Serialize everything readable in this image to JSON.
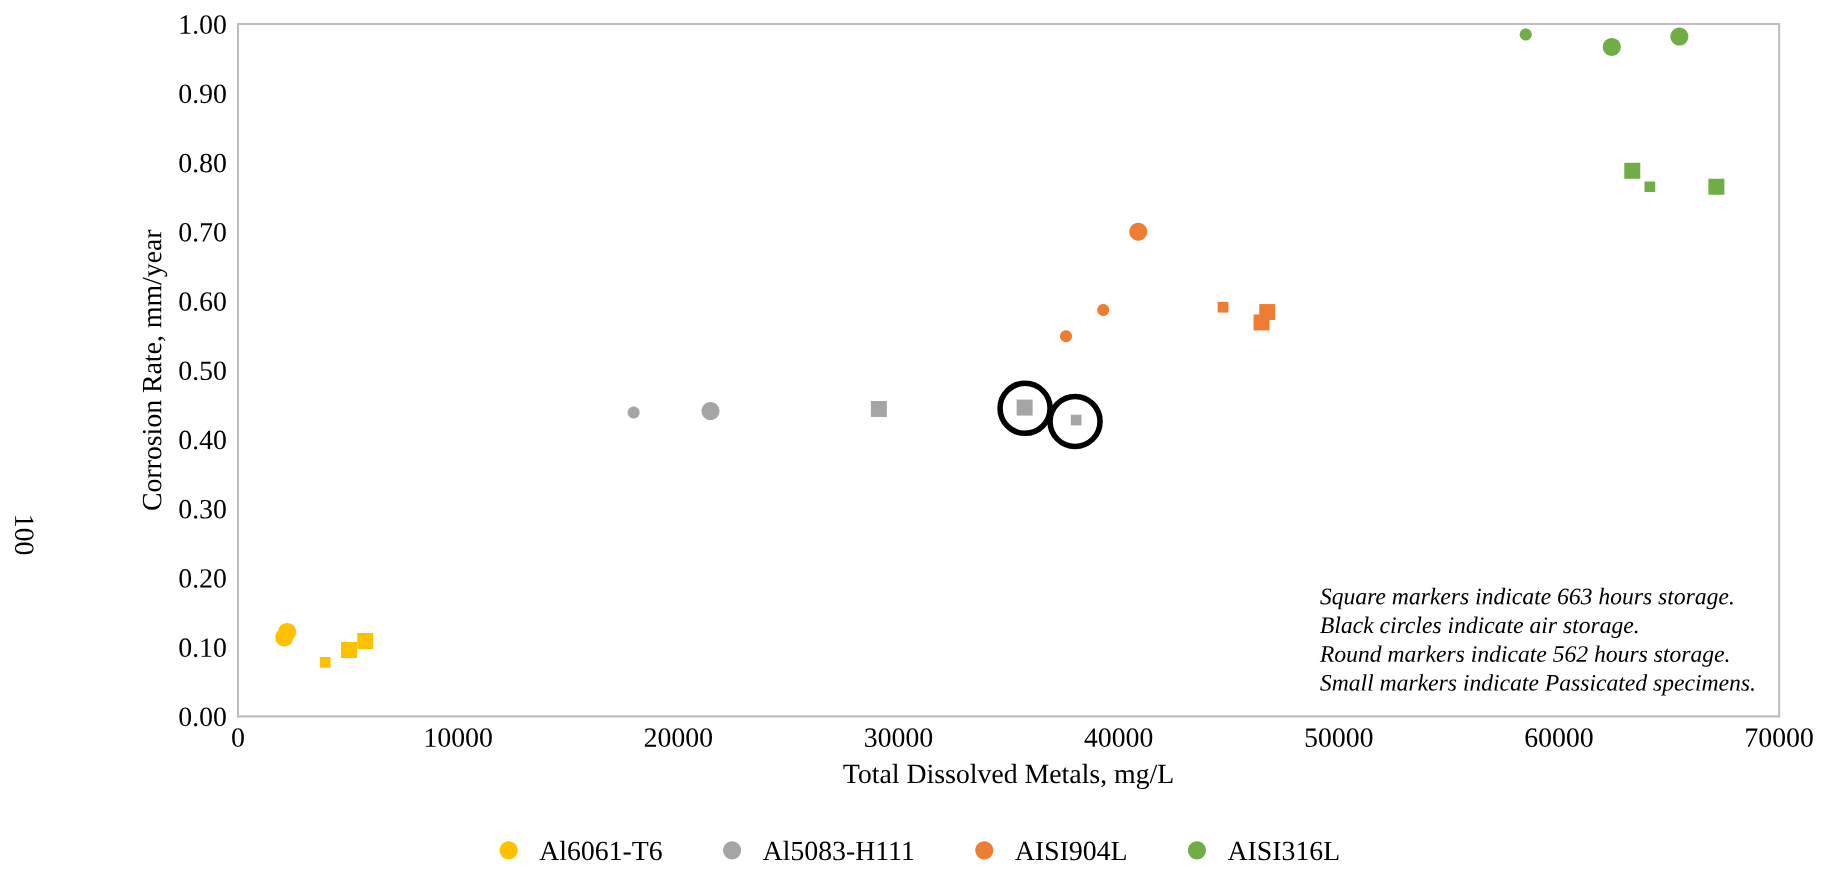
{
  "chart_data": {
    "type": "scatter",
    "xlabel": "Total Dissolved Metals, mg/L",
    "ylabel": "Corrosion Rate, mm/year",
    "xlim": [
      0,
      70000
    ],
    "ylim": [
      0,
      1.0
    ],
    "xticks": [
      0,
      10000,
      20000,
      30000,
      40000,
      50000,
      60000,
      70000
    ],
    "yticks": [
      {
        "value": 0,
        "label": "0.00"
      },
      {
        "value": 0.1,
        "label": "0.10"
      },
      {
        "value": 0.2,
        "label": "0.20"
      },
      {
        "value": 0.3,
        "label": "0.30"
      },
      {
        "value": 0.4,
        "label": "0.40"
      },
      {
        "value": 0.5,
        "label": "0.50"
      },
      {
        "value": 0.6,
        "label": "0.60"
      },
      {
        "value": 0.7,
        "label": "0.70"
      },
      {
        "value": 0.8,
        "label": "0.80"
      },
      {
        "value": 0.9,
        "label": "0.90"
      },
      {
        "value": 1.0,
        "label": "1.00"
      }
    ],
    "grid": false,
    "legend": "bottom",
    "annotations": [
      "100",
      "Square markers indicate 663 hours storage.",
      "Black circles indicate air storage.",
      "Round markers indicate 562 hours storage.",
      "Small markers indicate Passicated specimens."
    ],
    "series": [
      {
        "name": "Al6061-T6",
        "color": "#ffc000",
        "marker": "circle",
        "x": [
          2100,
          2230
        ],
        "values": [
          0.114,
          0.122
        ],
        "sizes": [
          0.13,
          0.13
        ]
      },
      {
        "color": "#ffc000",
        "marker": "square",
        "x": [
          3960,
          5040,
          5780
        ],
        "values": [
          0.078,
          0.096,
          0.109
        ],
        "sizes": [
          0.058,
          0.13,
          0.13
        ]
      },
      {
        "name": "Al5083-H111",
        "color": "#a5a5a5",
        "marker": "circle",
        "x": [
          17970,
          21460
        ],
        "values": [
          0.439,
          0.441
        ],
        "sizes": [
          0.058,
          0.13
        ]
      },
      {
        "color": "#a5a5a5",
        "marker": "square",
        "x": [
          29110,
          35730,
          38070
        ],
        "values": [
          0.444,
          0.446,
          0.428
        ],
        "sizes": [
          0.13,
          0.13,
          0.058
        ]
      },
      {
        "name": "AISI904L",
        "color": "#ed7d31",
        "marker": "circle",
        "x": [
          37610,
          39300,
          40890
        ],
        "values": [
          0.549,
          0.587,
          0.7
        ],
        "sizes": [
          0.058,
          0.058,
          0.13
        ]
      },
      {
        "color": "#ed7d31",
        "marker": "square",
        "x": [
          44740,
          46490,
          46750
        ],
        "values": [
          0.591,
          0.569,
          0.584
        ],
        "sizes": [
          0.058,
          0.13,
          0.13
        ]
      },
      {
        "name": "AISI316L",
        "color": "#70ad47",
        "marker": "circle",
        "x": [
          58490,
          62400,
          65470
        ],
        "values": [
          0.985,
          0.967,
          0.982
        ],
        "sizes": [
          0.058,
          0.13,
          0.13
        ]
      },
      {
        "color": "#70ad47",
        "marker": "square",
        "x": [
          63330,
          64130,
          67150
        ],
        "values": [
          0.788,
          0.765,
          0.765
        ],
        "sizes": [
          0.13,
          0.058,
          0.13
        ]
      },
      {
        "type": "bubble",
        "color": "#000000",
        "marker": "circle",
        "x": [
          35750,
          38020
        ],
        "values": [
          0.445,
          0.426
        ],
        "sizes": [
          1,
          1
        ]
      }
    ]
  }
}
